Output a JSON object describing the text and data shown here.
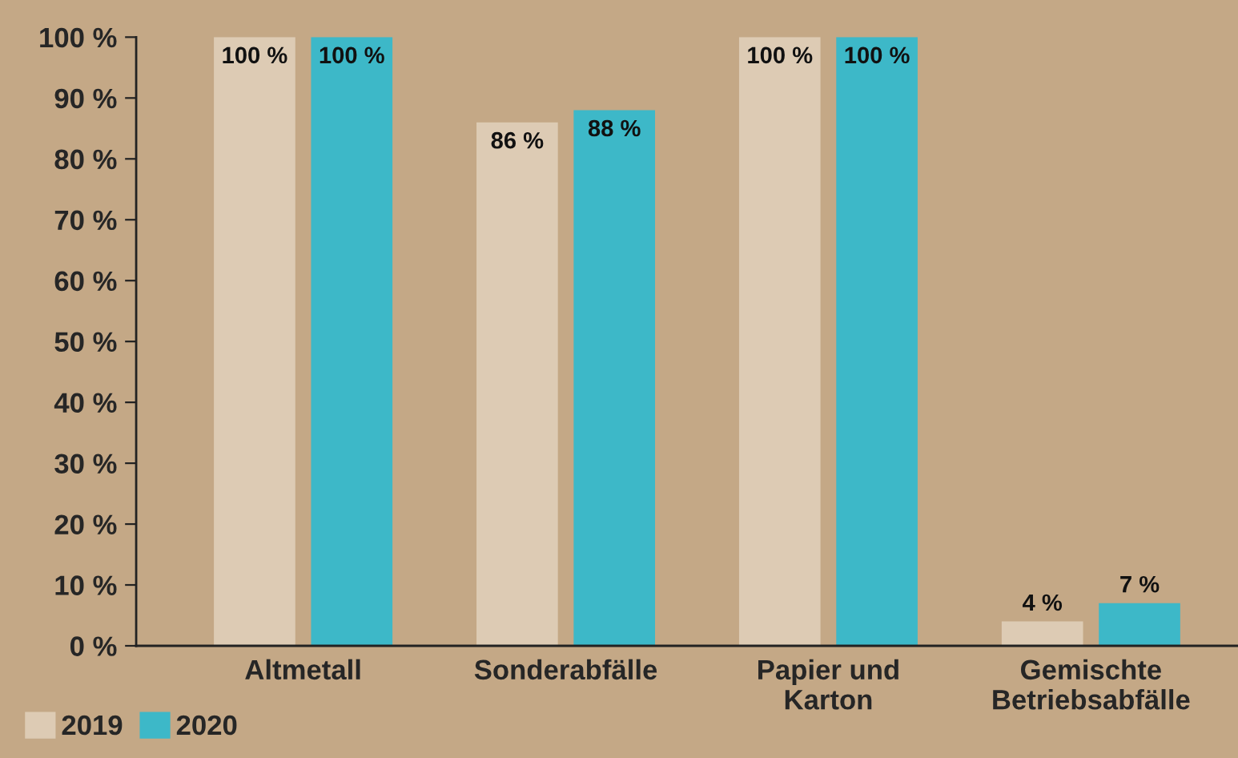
{
  "chart_data": {
    "type": "bar",
    "categories": [
      "Altmetall",
      "Sonderabfälle",
      "Papier und\nKarton",
      "Gemischte\nBetriebsabfälle"
    ],
    "series": [
      {
        "name": "2019",
        "color": "#ddcbb4",
        "values": [
          100,
          86,
          100,
          4
        ],
        "value_labels": [
          "100 %",
          "86 %",
          "100 %",
          "4 %"
        ]
      },
      {
        "name": "2020",
        "color": "#3db8c8",
        "values": [
          100,
          88,
          100,
          7
        ],
        "value_labels": [
          "100 %",
          "88 %",
          "100 %",
          "7 %"
        ]
      }
    ],
    "ylim": [
      0,
      100
    ],
    "yticks": [
      {
        "value": 0,
        "label": "0 %"
      },
      {
        "value": 10,
        "label": "10 %"
      },
      {
        "value": 20,
        "label": "20 %"
      },
      {
        "value": 30,
        "label": "30 %"
      },
      {
        "value": 40,
        "label": "40 %"
      },
      {
        "value": 50,
        "label": "50 %"
      },
      {
        "value": 60,
        "label": "60 %"
      },
      {
        "value": 70,
        "label": "70 %"
      },
      {
        "value": 80,
        "label": "80 %"
      },
      {
        "value": 90,
        "label": "90 %"
      },
      {
        "value": 100,
        "label": "100 %"
      }
    ],
    "grid": false,
    "legend": "bottom left"
  }
}
